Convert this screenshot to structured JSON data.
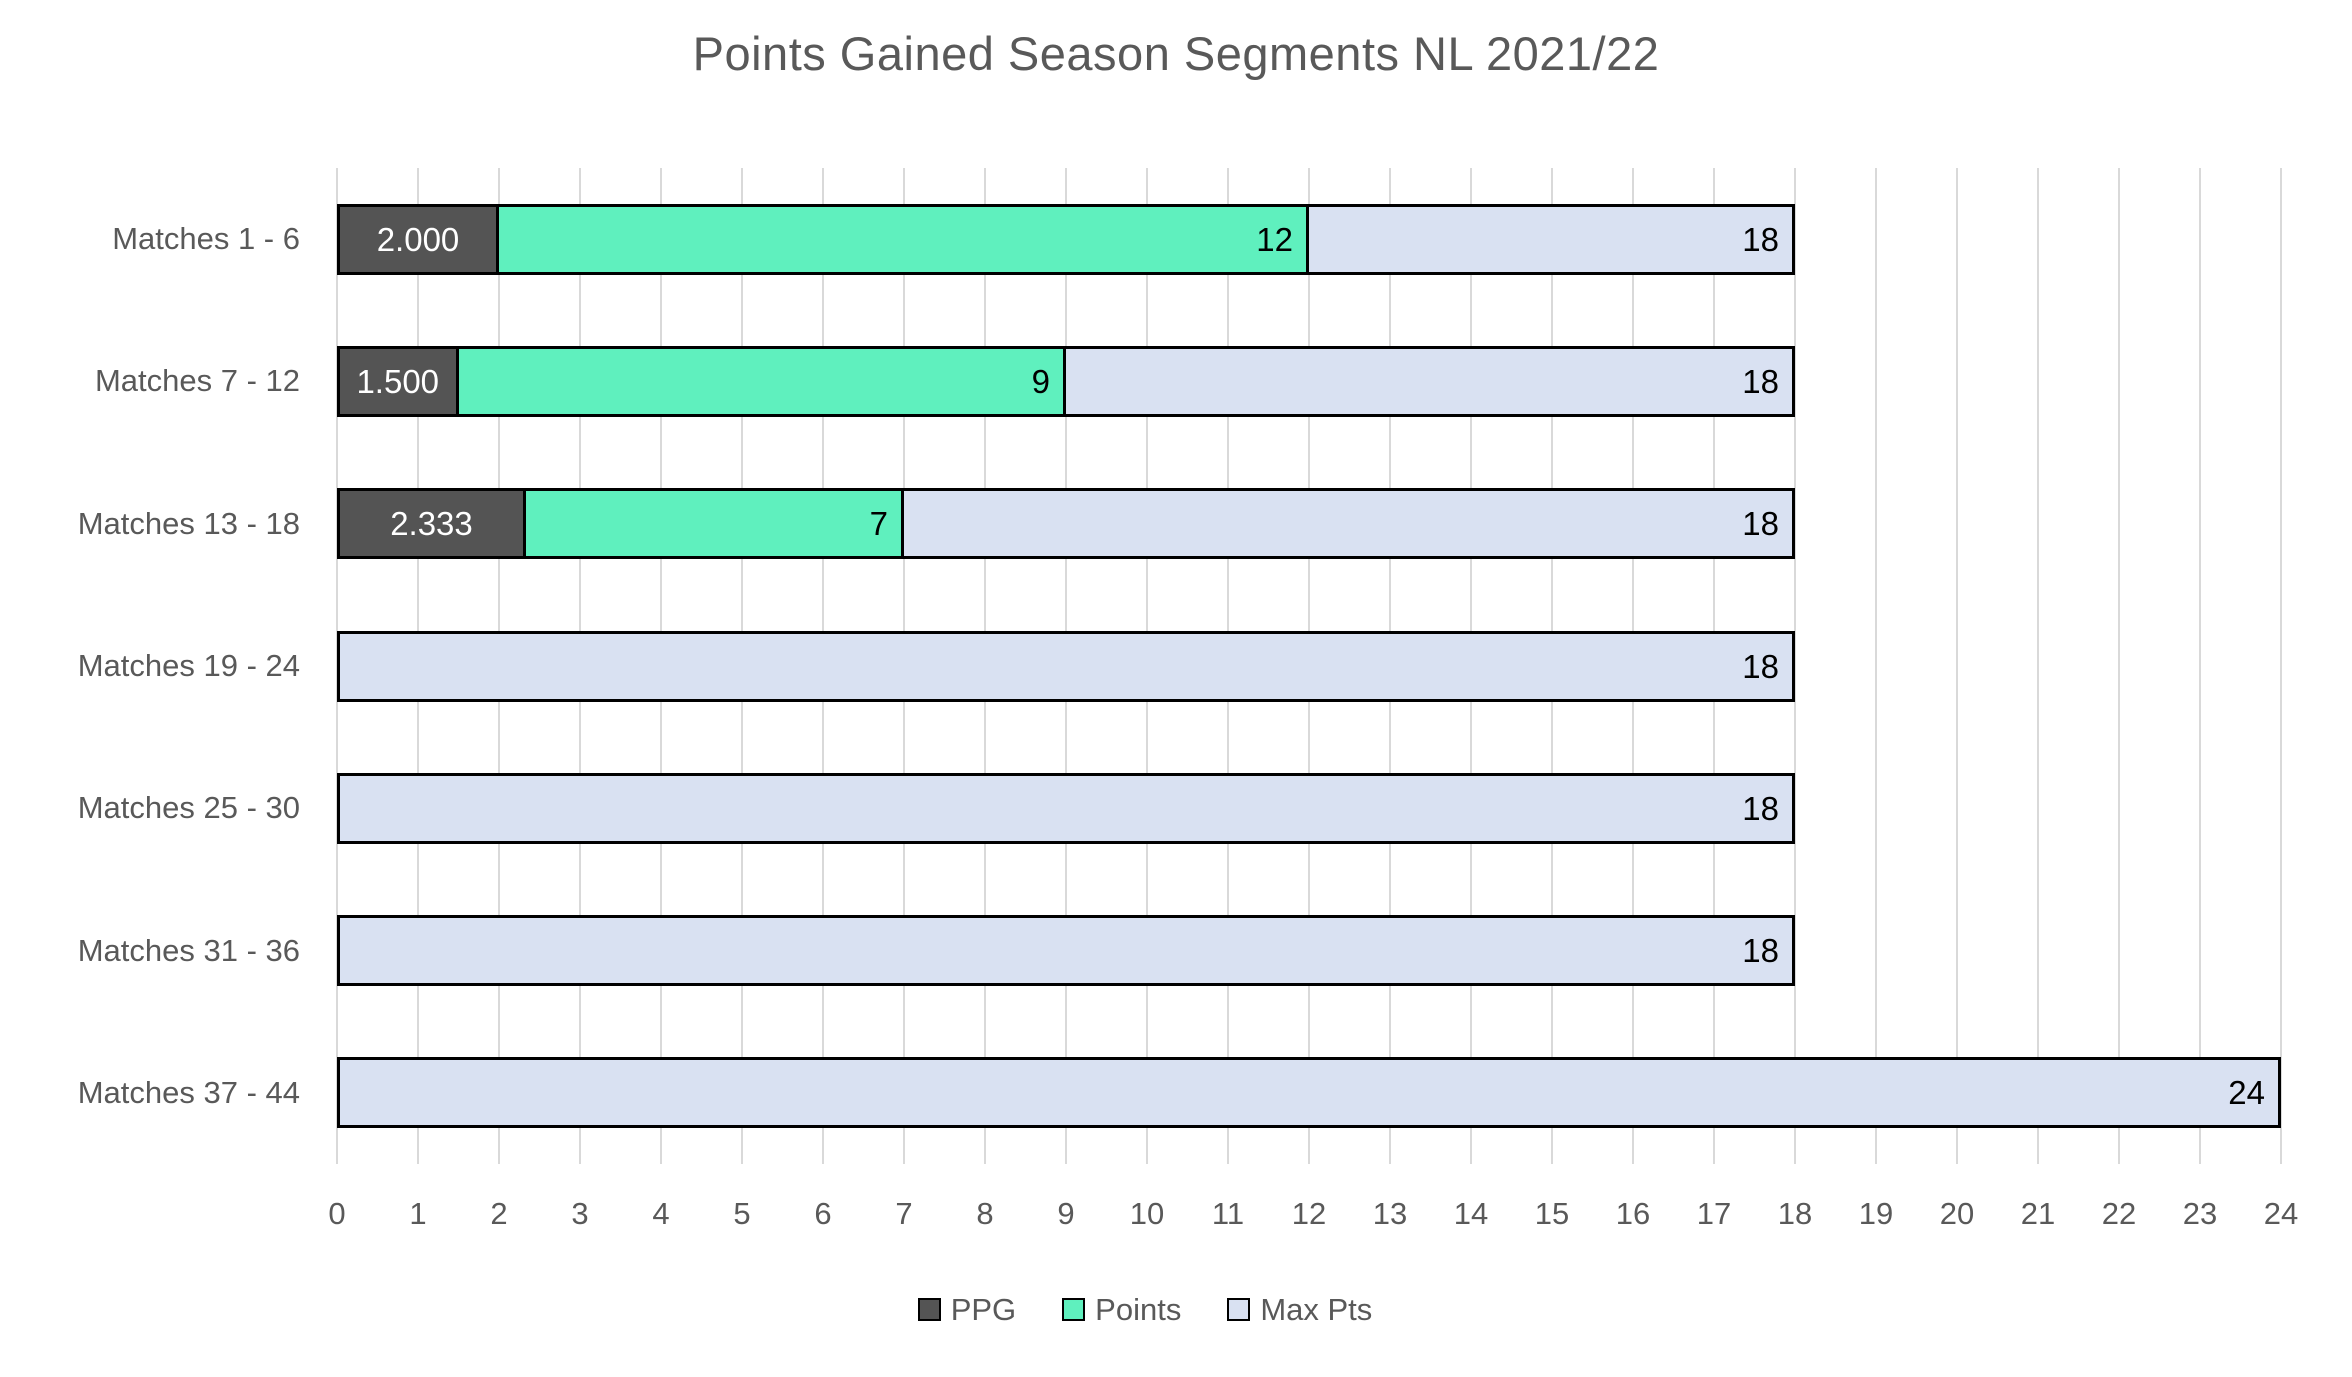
{
  "chart_data": {
    "type": "bar",
    "orientation": "horizontal",
    "bar_layout": "overlap",
    "title": "Points Gained Season Segments NL 2021/22",
    "categories": [
      "Matches 1 - 6",
      "Matches 7 - 12",
      "Matches 13 - 18",
      "Matches 19 - 24",
      "Matches 25 - 30",
      "Matches 31 - 36",
      "Matches 37 - 44"
    ],
    "series": [
      {
        "name": "PPG",
        "key": "ppg",
        "color": "#545454",
        "label_color": "#ffffff",
        "label_position": "center",
        "values": [
          2.0,
          1.5,
          2.333,
          null,
          null,
          null,
          null
        ],
        "labels": [
          "2.000",
          "1.500",
          "2.333",
          "",
          "",
          "",
          ""
        ]
      },
      {
        "name": "Points",
        "key": "points",
        "color": "#5ff0be",
        "label_color": "#000000",
        "label_position": "inside-end",
        "values": [
          12,
          9,
          7,
          null,
          null,
          null,
          null
        ],
        "labels": [
          "12",
          "9",
          "7",
          "",
          "",
          "",
          ""
        ]
      },
      {
        "name": "Max Pts",
        "key": "max-pts",
        "color": "#d9e1f2",
        "label_color": "#000000",
        "label_position": "inside-end",
        "values": [
          18,
          18,
          18,
          18,
          18,
          18,
          24
        ],
        "labels": [
          "18",
          "18",
          "18",
          "18",
          "18",
          "18",
          "24"
        ]
      }
    ],
    "xlim": [
      0,
      24
    ],
    "x_ticks": [
      0,
      1,
      2,
      3,
      4,
      5,
      6,
      7,
      8,
      9,
      10,
      11,
      12,
      13,
      14,
      15,
      16,
      17,
      18,
      19,
      20,
      21,
      22,
      23,
      24
    ],
    "grid": true,
    "legend_position": "bottom",
    "colors": {
      "grid": "#d9d9d9",
      "axis_text": "#595959",
      "bar_border": "#000000",
      "background": "#ffffff"
    }
  }
}
